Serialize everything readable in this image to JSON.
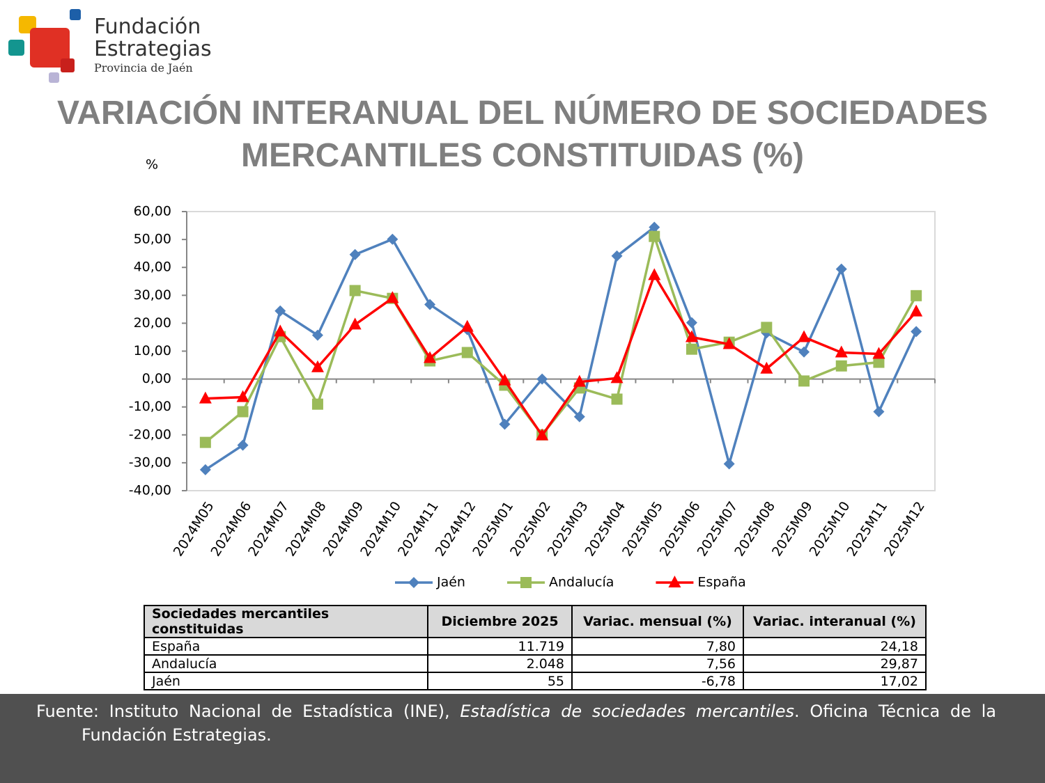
{
  "logo": {
    "line1": "Fundación",
    "line2": "Estrategias",
    "line3": "Provincia de Jaén"
  },
  "chart_data": {
    "type": "line",
    "title": [
      "VARIACIÓN INTERANUAL DEL NÚMERO DE SOCIEDADES",
      "MERCANTILES CONSTITUIDAS (%)"
    ],
    "y_label": "%",
    "categories": [
      "2024M05",
      "2024M06",
      "2024M07",
      "2024M08",
      "2024M09",
      "2024M10",
      "2024M11",
      "2024M12",
      "2025M01",
      "2025M02",
      "2025M03",
      "2025M04",
      "2025M05",
      "2025M06",
      "2025M07",
      "2025M08",
      "2025M09",
      "2025M10",
      "2025M11",
      "2025M12"
    ],
    "series": [
      {
        "name": "Jaén",
        "color": "#4f81bd",
        "marker": "diamond",
        "values": [
          -32.5,
          -23.7,
          24.4,
          15.7,
          44.6,
          50.1,
          26.7,
          17.7,
          -16.2,
          0,
          -13.5,
          44.1,
          54.4,
          20.2,
          -30.4,
          16.5,
          9.7,
          39.4,
          -11.7,
          17.02
        ]
      },
      {
        "name": "Andalucía",
        "color": "#9bbb59",
        "marker": "square",
        "values": [
          -22.7,
          -11.7,
          15.2,
          -9.0,
          31.7,
          28.9,
          6.5,
          9.5,
          -2.2,
          -20,
          -3.2,
          -7.2,
          51.1,
          10.7,
          13.2,
          18.5,
          -0.7,
          4.7,
          6,
          29.87
        ]
      },
      {
        "name": "España",
        "color": "#ff0000",
        "marker": "triangle",
        "values": [
          -7,
          -6.5,
          17,
          4.2,
          19.5,
          29,
          7.5,
          18.7,
          -0.5,
          -20.2,
          -1,
          0.3,
          37.2,
          15,
          12.5,
          3.7,
          15,
          9.5,
          9,
          24.18
        ]
      }
    ],
    "ylim": [
      -40,
      60
    ],
    "yticks": [
      {
        "value": -40,
        "label": "-40,00"
      },
      {
        "value": -30,
        "label": "-30,00"
      },
      {
        "value": -20,
        "label": "-20,00"
      },
      {
        "value": -10,
        "label": "-10,00"
      },
      {
        "value": 0,
        "label": "0,00"
      },
      {
        "value": 10,
        "label": "10,00"
      },
      {
        "value": 20,
        "label": "20,00"
      },
      {
        "value": 30,
        "label": "30,00"
      },
      {
        "value": 40,
        "label": "40,00"
      },
      {
        "value": 50,
        "label": "50,00"
      },
      {
        "value": 60,
        "label": "60,00"
      }
    ],
    "grid": false,
    "legend": "bottom"
  },
  "table": {
    "header": [
      "Sociedades mercantiles constituidas",
      "Diciembre 2025",
      "Variac. mensual (%)",
      "Variac. interanual (%)"
    ],
    "rows": [
      [
        "España",
        "11.719",
        "7,80",
        "24,18"
      ],
      [
        "Andalucía",
        "2.048",
        "7,56",
        "29,87"
      ],
      [
        "Jaén",
        "55",
        "-6,78",
        "17,02"
      ]
    ]
  },
  "footer": {
    "part1": "Fuente: Instituto Nacional de Estadística (INE), ",
    "part2": "Estadística de sociedades mercantiles",
    "part3": ". Oficina Técnica de la Fundación Estrategias."
  }
}
